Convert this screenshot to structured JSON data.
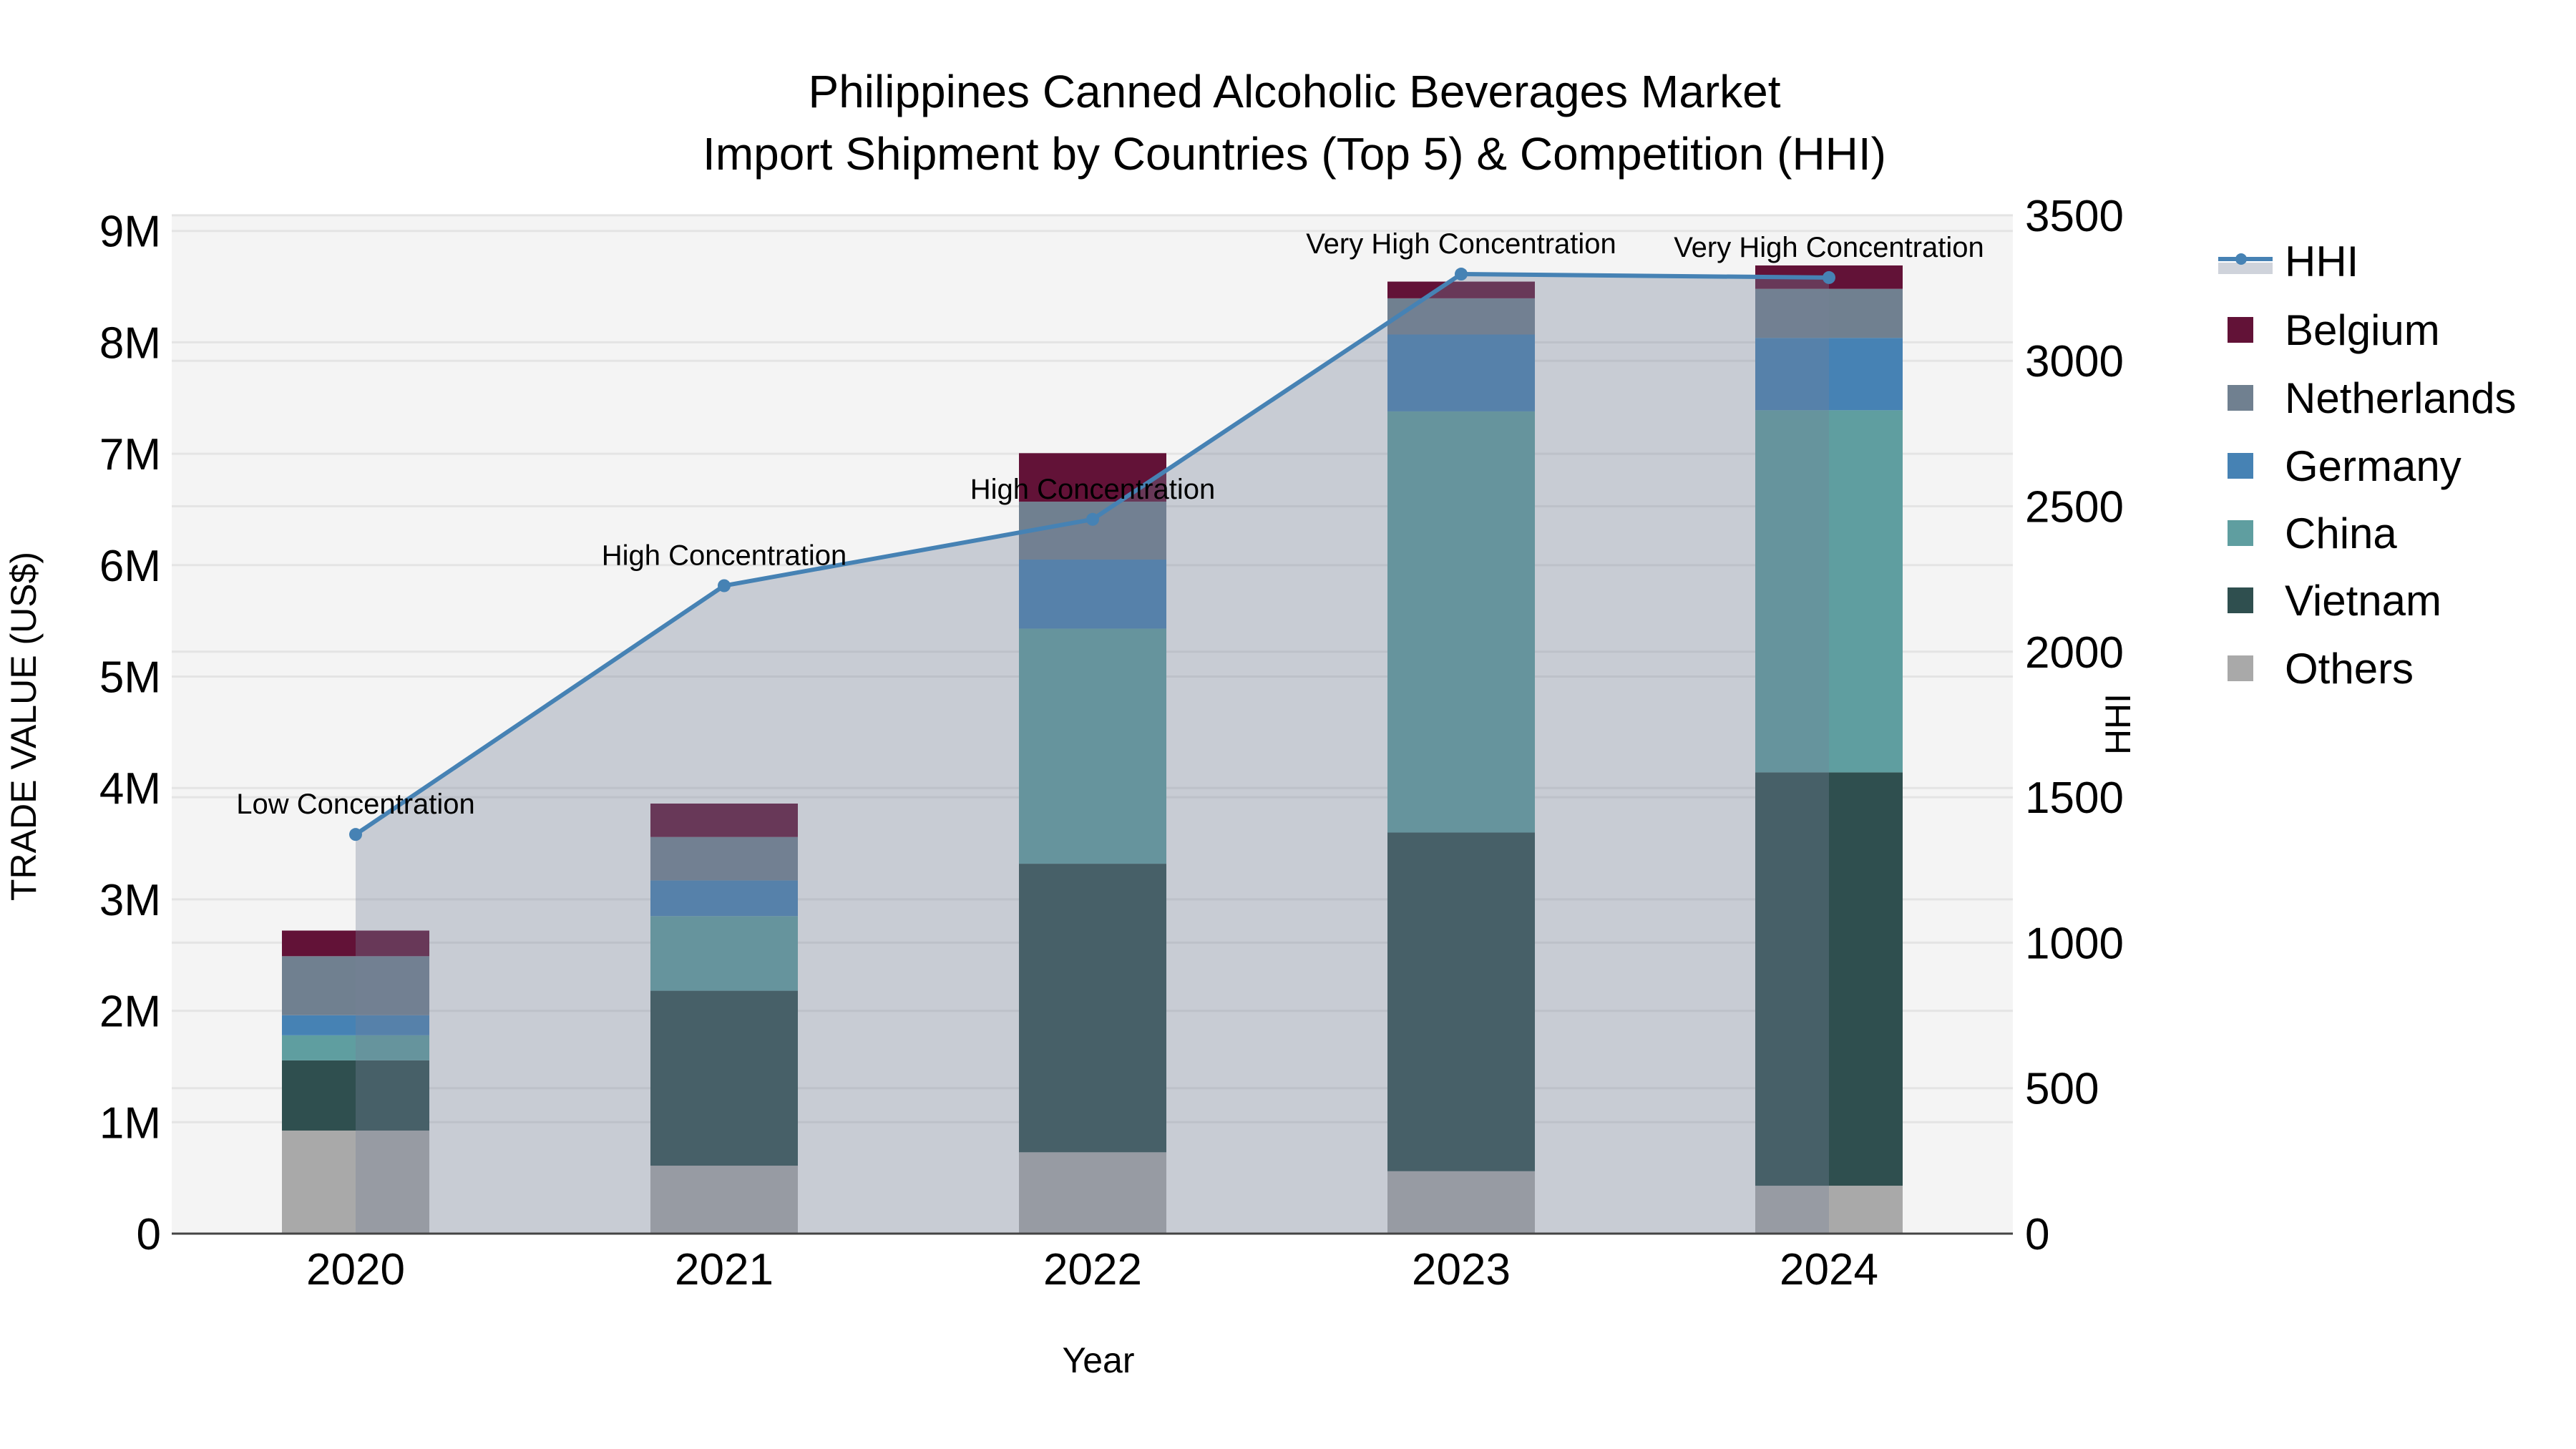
{
  "title": {
    "line1": "Philippines Canned Alcoholic Beverages Market",
    "line2": "Import Shipment by Countries (Top 5) & Competition (HHI)"
  },
  "axes": {
    "x_title": "Year",
    "y_left_title": "TRADE VALUE (US$)",
    "y_right_title": "HHI",
    "y_left_ticks": [
      "0",
      "1M",
      "2M",
      "3M",
      "4M",
      "5M",
      "6M",
      "7M",
      "8M",
      "9M"
    ],
    "y_right_ticks": [
      "0",
      "500",
      "1000",
      "1500",
      "2000",
      "2500",
      "3000",
      "3500"
    ]
  },
  "legend": {
    "items": [
      {
        "label": "HHI",
        "type": "line",
        "color": "#4682b4"
      },
      {
        "label": "Belgium",
        "type": "bar",
        "color": "#621237"
      },
      {
        "label": "Netherlands",
        "type": "bar",
        "color": "#708090"
      },
      {
        "label": "Germany",
        "type": "bar",
        "color": "#4682b4"
      },
      {
        "label": "China",
        "type": "bar",
        "color": "#5f9ea0"
      },
      {
        "label": "Vietnam",
        "type": "bar",
        "color": "#2f4f4f"
      },
      {
        "label": "Others",
        "type": "bar",
        "color": "#a9a9a9"
      }
    ]
  },
  "colors": {
    "plot_bg": "#f4f4f4",
    "grid": "#e4e4e4",
    "axis_line": "#444444",
    "hhi_line": "#4682b4",
    "hhi_fill": "rgba(117,129,152,0.35)"
  },
  "chart_data": {
    "type": "bar",
    "stacked": true,
    "title": "Philippines Canned Alcoholic Beverages Market — Import Shipment by Countries (Top 5) & Competition (HHI)",
    "xlabel": "Year",
    "ylabel": "TRADE VALUE (US$)",
    "y2label": "HHI",
    "categories": [
      "2020",
      "2021",
      "2022",
      "2023",
      "2024"
    ],
    "ylim": [
      0,
      9140000
    ],
    "y2lim": [
      0,
      3500
    ],
    "grid": true,
    "legend_position": "right",
    "series": [
      {
        "name": "Others",
        "color": "#a9a9a9",
        "values": [
          925000,
          610000,
          730000,
          560000,
          430000
        ]
      },
      {
        "name": "Vietnam",
        "color": "#2f4f4f",
        "values": [
          630000,
          1570000,
          2590000,
          3040000,
          3710000
        ]
      },
      {
        "name": "China",
        "color": "#5f9ea0",
        "values": [
          225000,
          670000,
          2110000,
          3780000,
          3250000
        ]
      },
      {
        "name": "Germany",
        "color": "#4682b4",
        "values": [
          180000,
          320000,
          620000,
          690000,
          650000
        ]
      },
      {
        "name": "Netherlands",
        "color": "#708090",
        "values": [
          530000,
          390000,
          520000,
          325000,
          440000
        ]
      },
      {
        "name": "Belgium",
        "color": "#621237",
        "values": [
          230000,
          300000,
          435000,
          150000,
          210000
        ]
      }
    ],
    "line_series": {
      "name": "HHI",
      "axis": "right",
      "color": "#4682b4",
      "fill": "tozeroy",
      "values": [
        1372,
        2227,
        2455,
        3298,
        3286
      ],
      "annotations": [
        "Low Concentration",
        "High Concentration",
        "High Concentration",
        "Very High Concentration",
        "Very High Concentration"
      ]
    }
  }
}
